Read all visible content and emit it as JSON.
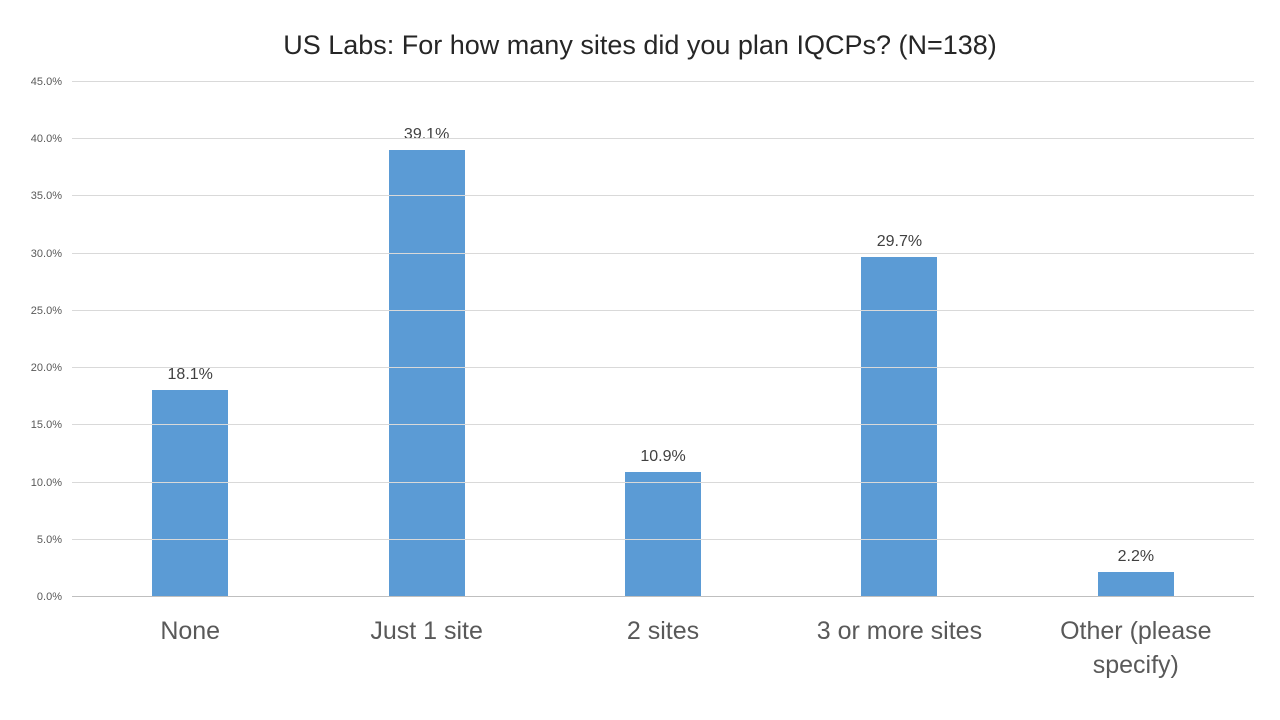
{
  "chart_data": {
    "type": "bar",
    "title": "US Labs: For how many sites did you plan IQCPs? (N=138)",
    "categories": [
      "None",
      "Just 1 site",
      "2 sites",
      "3 or more sites",
      "Other (please specify)"
    ],
    "values": [
      18.1,
      39.1,
      10.9,
      29.7,
      2.2
    ],
    "value_labels": [
      "18.1%",
      "39.1%",
      "10.9%",
      "29.7%",
      "2.2%"
    ],
    "xlabel": "",
    "ylabel": "",
    "ylim": [
      0,
      45
    ],
    "ytick_step": 5,
    "ytick_labels": [
      "0.0%",
      "5.0%",
      "10.0%",
      "15.0%",
      "20.0%",
      "25.0%",
      "30.0%",
      "35.0%",
      "40.0%",
      "45.0%"
    ],
    "grid": true,
    "legend": "none",
    "colors": {
      "bar": "#5B9BD5",
      "gridline": "#d9d9d9",
      "axis_line": "#bfbfbf",
      "title_text": "#262626",
      "value_label_text": "#404040",
      "tick_text": "#595959",
      "category_text": "#595959",
      "background": "#ffffff"
    }
  }
}
